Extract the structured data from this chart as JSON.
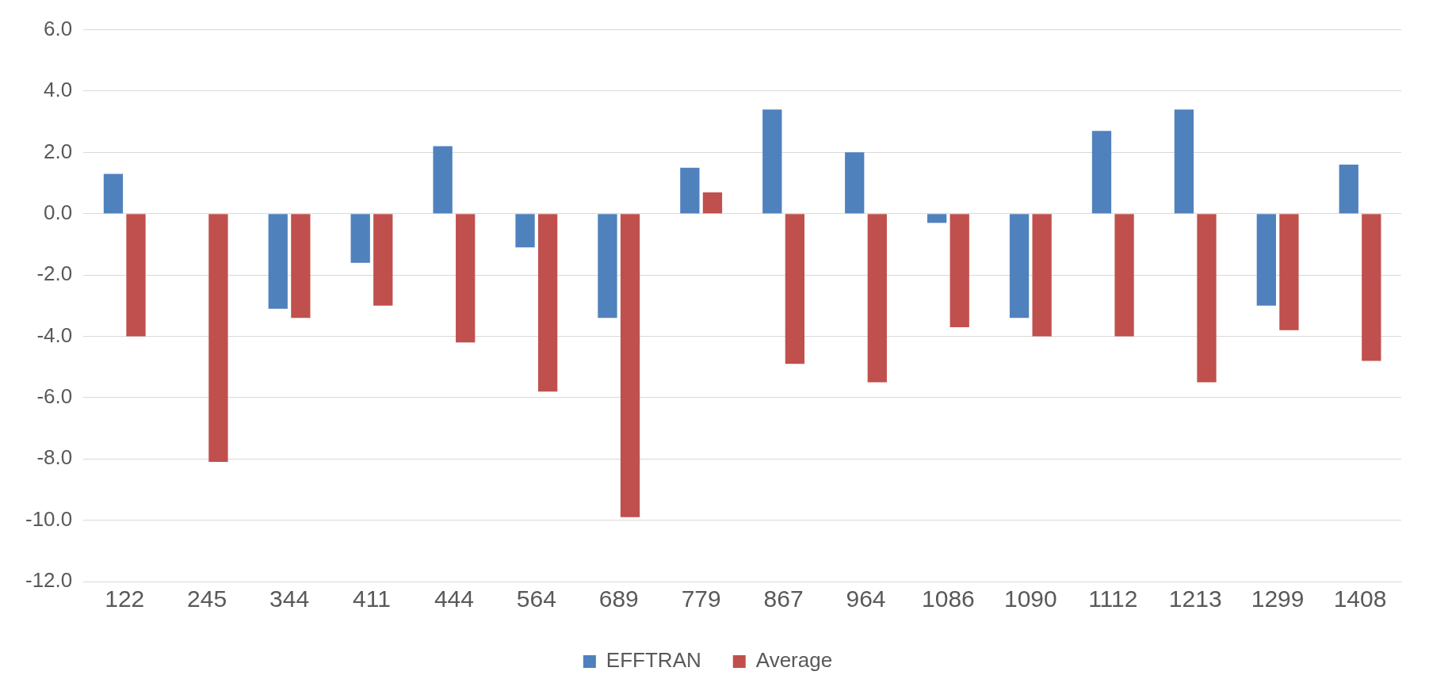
{
  "chart_data": {
    "type": "bar",
    "categories": [
      "122",
      "245",
      "344",
      "411",
      "444",
      "564",
      "689",
      "779",
      "867",
      "964",
      "1086",
      "1090",
      "1112",
      "1213",
      "1299",
      "1408"
    ],
    "series": [
      {
        "name": "EFFTRAN",
        "color": "#4f81bd",
        "values": [
          1.3,
          null,
          -3.1,
          -1.6,
          2.2,
          -1.1,
          -3.4,
          1.5,
          3.4,
          2.0,
          -0.3,
          -3.4,
          2.7,
          3.4,
          -3.0,
          1.6
        ]
      },
      {
        "name": "Average",
        "color": "#c0504d",
        "values": [
          -4.0,
          -8.1,
          -3.4,
          -3.0,
          -4.2,
          -5.8,
          -9.9,
          0.7,
          -4.9,
          -5.5,
          -3.7,
          -4.0,
          -4.0,
          -5.5,
          -3.8,
          -4.8
        ]
      }
    ],
    "ylim": [
      -12,
      6
    ],
    "yticks": [
      {
        "value": -12,
        "label": "-12.0"
      },
      {
        "value": -10,
        "label": "-10.0"
      },
      {
        "value": -8,
        "label": "-8.0"
      },
      {
        "value": -6,
        "label": "-6.0"
      },
      {
        "value": -4,
        "label": "-4.0"
      },
      {
        "value": -2,
        "label": "-2.0"
      },
      {
        "value": 0,
        "label": "0.0"
      },
      {
        "value": 2,
        "label": "2.0"
      },
      {
        "value": 4,
        "label": "4.0"
      },
      {
        "value": 6,
        "label": "6.0"
      }
    ],
    "grid": "y",
    "legend": "bottom"
  }
}
